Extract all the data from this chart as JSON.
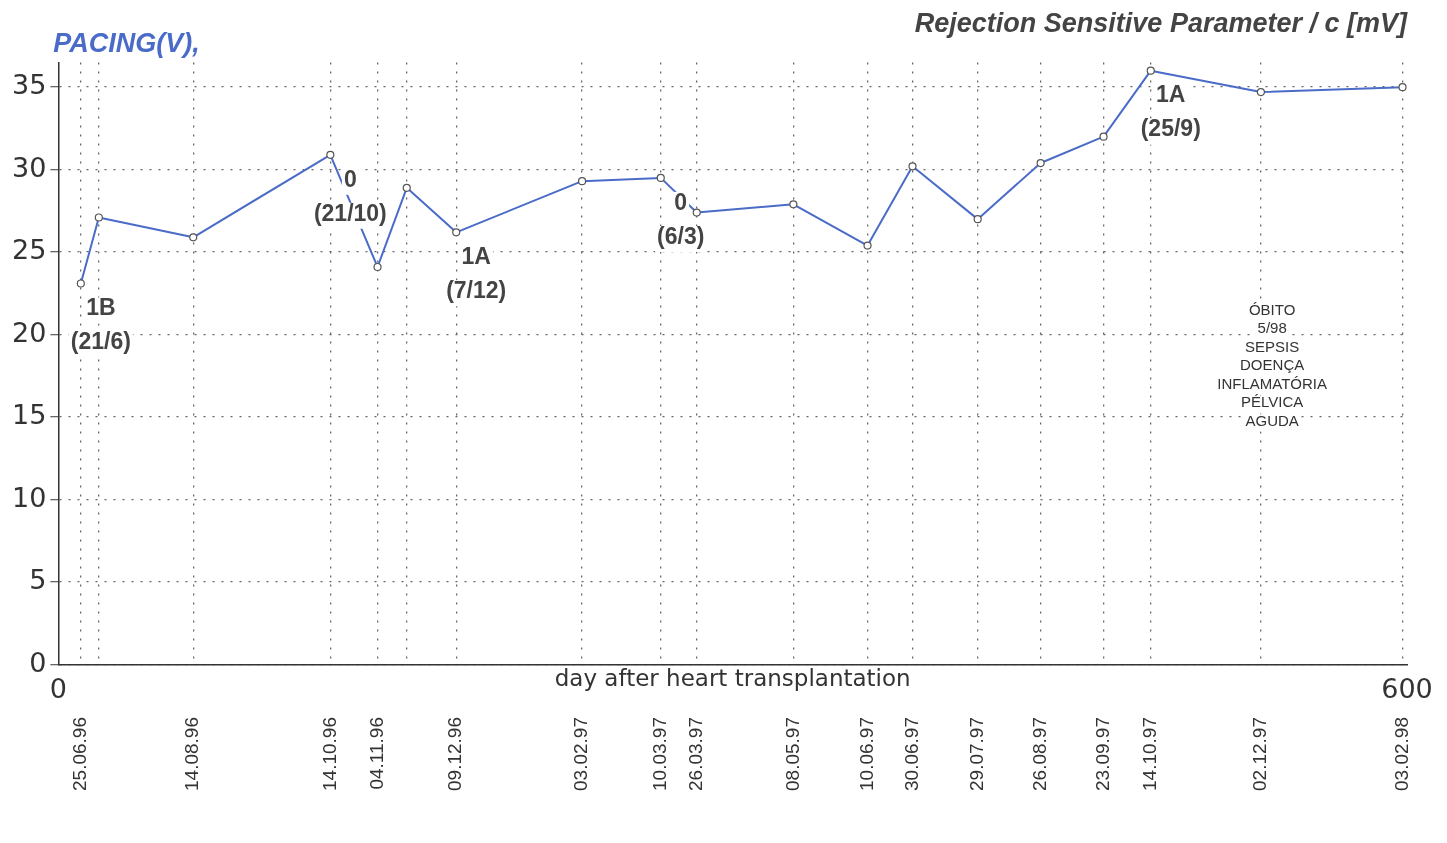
{
  "chart_data": {
    "type": "line",
    "title": "Rejection Sensitive Parameter / c [mV]",
    "ylabel": "PACING(V),",
    "xlabel": "day after heart transplantation",
    "x": [
      10,
      18,
      60,
      121,
      142,
      155,
      177,
      233,
      268,
      284,
      327,
      360,
      380,
      409,
      437,
      465,
      486,
      535,
      598
    ],
    "series": [
      {
        "color": "#4a6cc8",
        "values": [
          23.1,
          27.1,
          25.9,
          30.9,
          24.1,
          28.9,
          26.2,
          29.3,
          29.5,
          27.4,
          27.9,
          25.4,
          30.2,
          27.0,
          30.4,
          32.0,
          36.0,
          34.7,
          35.0
        ]
      }
    ],
    "xlim": [
      0,
      600
    ],
    "xticks": [
      0,
      600
    ],
    "x2lim": [
      "1996-06-15",
      "1998-02-05"
    ],
    "x2ticks": [
      {
        "value": "1996-06-25",
        "label": "25.06.96"
      },
      {
        "value": "1996-07-03",
        "label": null
      },
      {
        "value": "1996-08-14",
        "label": "14.08.96"
      },
      {
        "value": "1996-10-14",
        "label": "14.10.96"
      },
      {
        "value": "1996-11-04",
        "label": "04.11.96"
      },
      {
        "value": "1996-11-17",
        "label": null
      },
      {
        "value": "1996-12-09",
        "label": "09.12.96"
      },
      {
        "value": "1997-02-03",
        "label": "03.02.97"
      },
      {
        "value": "1997-03-10",
        "label": "10.03.97"
      },
      {
        "value": "1997-03-26",
        "label": "26.03.97"
      },
      {
        "value": "1997-05-08",
        "label": "08.05.97"
      },
      {
        "value": "1997-06-10",
        "label": "10.06.97"
      },
      {
        "value": "1997-06-30",
        "label": "30.06.97"
      },
      {
        "value": "1997-07-29",
        "label": "29.07.97"
      },
      {
        "value": "1997-08-26",
        "label": "26.08.97"
      },
      {
        "value": "1997-09-23",
        "label": "23.09.97"
      },
      {
        "value": "1997-10-14",
        "label": "14.10.97"
      },
      {
        "value": "1997-12-02",
        "label": "02.12.97"
      },
      {
        "value": "1998-02-03",
        "label": "03.02.98"
      }
    ],
    "ylim": [
      0,
      36.5
    ],
    "yticks": [
      0,
      5,
      10,
      15,
      20,
      25,
      30,
      35
    ],
    "grid": true,
    "marker": "circle",
    "line_style": "solid",
    "legend": false,
    "annotations": [
      {
        "text": "1B\n(21/6)",
        "x": 10,
        "y": 23.1
      },
      {
        "text": "0\n(21/10)",
        "x": 121,
        "y": 30.9
      },
      {
        "text": "1A\n(7/12)",
        "x": 177,
        "y": 26.2
      },
      {
        "text": "0\n(6/3)",
        "x": 268,
        "y": 29.5
      },
      {
        "text": "1A\n(25/9)",
        "x": 486,
        "y": 36.0
      },
      "ÓBITO\n5/98\nSEPSIS\nDOENÇA\nINFLAMATÓRIA\nPÉLVICA\nAGUDA"
    ]
  }
}
